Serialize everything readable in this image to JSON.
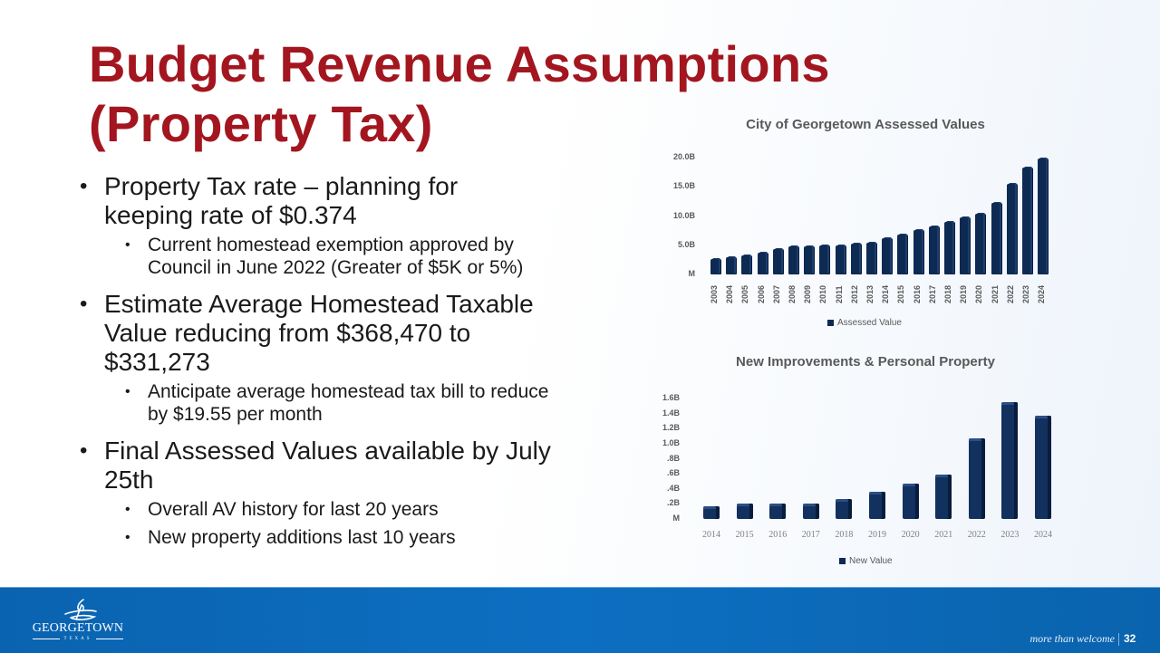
{
  "slide": {
    "title_line1": "Budget Revenue Assumptions",
    "title_line2": "(Property Tax)",
    "page_number": "32",
    "tagline": "more than welcome",
    "logo": {
      "wordmark": "GEORGETOWN",
      "subtext": "TEXAS"
    },
    "colors": {
      "title": "#a3161f",
      "footer": "#0d6fc2",
      "bar": "#0d2a52"
    }
  },
  "bullets": [
    {
      "text": "Property Tax rate – planning for keeping rate of $0.374",
      "sub": [
        "Current homestead exemption approved by Council in June 2022 (Greater of $5K or 5%)"
      ]
    },
    {
      "text": "Estimate Average Homestead Taxable Value reducing from $368,470 to $331,273",
      "sub": [
        "Anticipate average homestead tax bill to reduce by $19.55 per month"
      ]
    },
    {
      "text": "Final Assessed Values available by July 25th",
      "sub": [
        "Overall AV history for last 20 years",
        "New property additions last 10 years"
      ]
    }
  ],
  "chart_data": [
    {
      "type": "bar",
      "title": "City of Georgetown Assessed Values",
      "categories": [
        "2003",
        "2004",
        "2005",
        "2006",
        "2007",
        "2008",
        "2009",
        "2010",
        "2011",
        "2012",
        "2013",
        "2014",
        "2015",
        "2016",
        "2017",
        "2018",
        "2019",
        "2020",
        "2021",
        "2022",
        "2023",
        "2024"
      ],
      "series": [
        {
          "name": "Assessed Value",
          "values": [
            2.6,
            2.9,
            3.2,
            3.7,
            4.3,
            4.8,
            4.8,
            4.9,
            5.0,
            5.2,
            5.4,
            6.2,
            6.8,
            7.6,
            8.2,
            9.0,
            9.8,
            10.4,
            12.2,
            15.5,
            18.3,
            19.8
          ]
        }
      ],
      "unit": "billions USD",
      "yticks": [
        "M",
        "5.0B",
        "10.0B",
        "15.0B",
        "20.0B"
      ],
      "ylim": [
        0,
        20
      ],
      "xlabel": "",
      "ylabel": "",
      "legend": "Assessed Value",
      "legend_position": "bottom",
      "grid": false
    },
    {
      "type": "bar",
      "title": "New Improvements & Personal Property",
      "categories": [
        "2014",
        "2015",
        "2016",
        "2017",
        "2018",
        "2019",
        "2020",
        "2021",
        "2022",
        "2023",
        "2024"
      ],
      "series": [
        {
          "name": "New Value",
          "values": [
            0.17,
            0.21,
            0.21,
            0.21,
            0.27,
            0.36,
            0.47,
            0.59,
            1.07,
            1.55,
            1.37
          ]
        }
      ],
      "unit": "billions USD",
      "yticks": [
        "M",
        ".2B",
        ".4B",
        ".6B",
        ".8B",
        "1.0B",
        "1.2B",
        "1.4B",
        "1.6B"
      ],
      "ylim": [
        0,
        1.6
      ],
      "xlabel": "",
      "ylabel": "",
      "legend": "New Value",
      "legend_position": "bottom",
      "grid": false
    }
  ]
}
